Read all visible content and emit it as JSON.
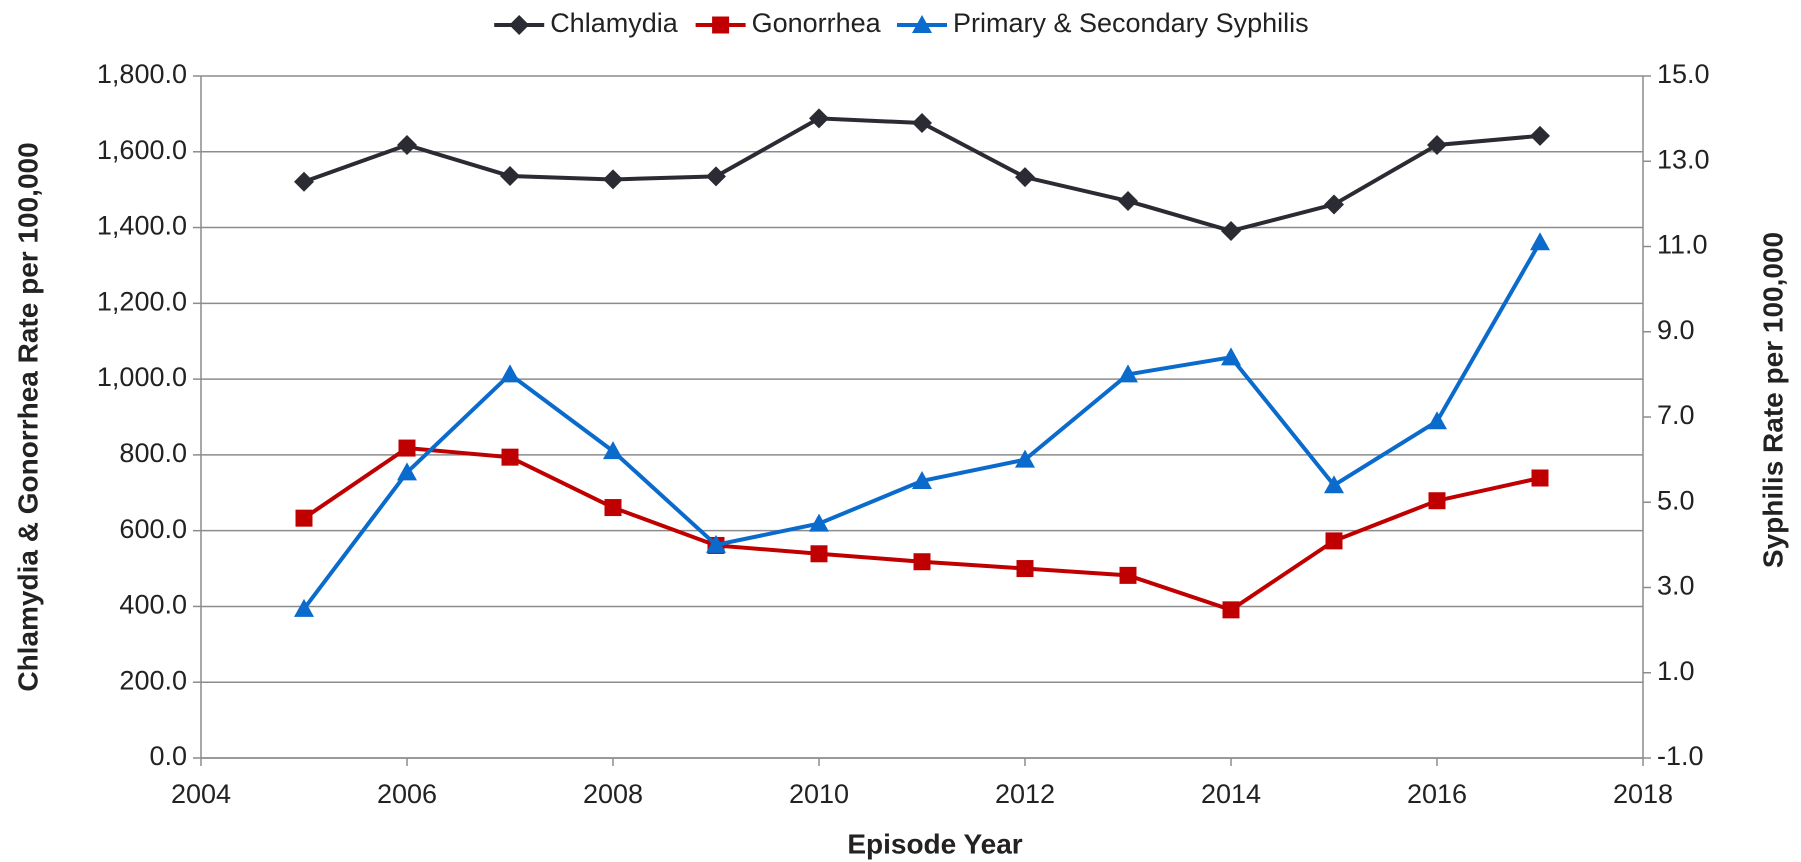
{
  "chart_data": {
    "type": "line",
    "x": [
      2005,
      2006,
      2007,
      2008,
      2009,
      2010,
      2011,
      2012,
      2013,
      2014,
      2015,
      2016,
      2017
    ],
    "series": [
      {
        "name": "Chlamydia",
        "color": "#2b2b33",
        "marker": "diamond",
        "values": [
          1521,
          1618,
          1536,
          1527,
          1535,
          1688,
          1676,
          1533,
          1470,
          1391,
          1461,
          1618,
          1642
        ]
      },
      {
        "name": "Gonorrhea",
        "color": "#c00000",
        "marker": "square",
        "values": [
          633,
          818,
          794,
          661,
          561,
          539,
          518,
          500,
          482,
          391,
          573,
          679,
          739
        ]
      },
      {
        "name": "Primary & Secondary Syphilis",
        "color": "#0a6bcd",
        "marker": "triangle",
        "axis": "y2",
        "values": [
          2.5,
          5.7,
          8.0,
          6.2,
          4.0,
          4.5,
          5.5,
          6.0,
          8.0,
          8.4,
          5.4,
          6.9,
          11.1
        ]
      }
    ],
    "xlabel": "Episode Year",
    "ylabel": "Chlamydia & Gonorrhea Rate per 100,000",
    "y2label": "Syphilis Rate per 100,000",
    "xlim": [
      2004,
      2018
    ],
    "xticks": [
      2004,
      2006,
      2008,
      2010,
      2012,
      2014,
      2016,
      2018
    ],
    "ylim": [
      0,
      1800
    ],
    "yticks": [
      {
        "value": 0,
        "label": "0.0"
      },
      {
        "value": 200,
        "label": "200.0"
      },
      {
        "value": 400,
        "label": "400.0"
      },
      {
        "value": 600,
        "label": "600.0"
      },
      {
        "value": 800,
        "label": "800.0"
      },
      {
        "value": 1000,
        "label": "1,000.0"
      },
      {
        "value": 1200,
        "label": "1,200.0"
      },
      {
        "value": 1400,
        "label": "1,400.0"
      },
      {
        "value": 1600,
        "label": "1,600.0"
      },
      {
        "value": 1800,
        "label": "1,800.0"
      }
    ],
    "y2lim": [
      -1,
      15
    ],
    "y2ticks": [
      {
        "value": -1,
        "label": "-1.0"
      },
      {
        "value": 1,
        "label": "1.0"
      },
      {
        "value": 3,
        "label": "3.0"
      },
      {
        "value": 5,
        "label": "5.0"
      },
      {
        "value": 7,
        "label": "7.0"
      },
      {
        "value": 9,
        "label": "9.0"
      },
      {
        "value": 11,
        "label": "11.0"
      },
      {
        "value": 13,
        "label": "13.0"
      },
      {
        "value": 15,
        "label": "15.0"
      }
    ],
    "grid": true,
    "legend": "top"
  }
}
